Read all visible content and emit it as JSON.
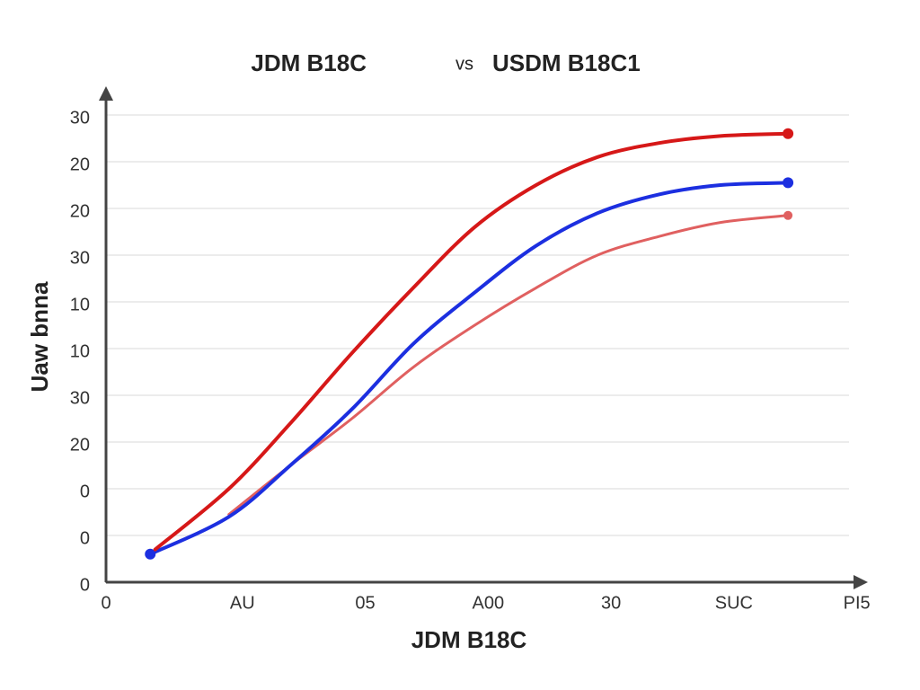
{
  "chart_data": {
    "type": "line",
    "title": [
      "JDM B18C",
      "vs",
      "USDM B18C1"
    ],
    "y_label": "Uaw bnna",
    "x_label": "JDM B18C",
    "xlim": [
      0,
      6.2
    ],
    "ylim": [
      0,
      10.5
    ],
    "xticks": [
      0,
      {
        "value": 1,
        "label": "AU"
      },
      {
        "value": 2,
        "label": "05"
      },
      {
        "value": 3,
        "label": "A00"
      },
      {
        "value": 4,
        "label": "30"
      },
      {
        "value": 5,
        "label": "SUC"
      },
      {
        "value": 6,
        "label": "PI5"
      }
    ],
    "yticks": [
      0,
      {
        "value": 1,
        "label": "0"
      },
      {
        "value": 2,
        "label": "0"
      },
      {
        "value": 3,
        "label": "20"
      },
      {
        "value": 4,
        "label": "30"
      },
      {
        "value": 5,
        "label": "10"
      },
      {
        "value": 6,
        "label": "10"
      },
      {
        "value": 7,
        "label": "30"
      },
      {
        "value": 8,
        "label": "20"
      },
      {
        "value": 9,
        "label": "20"
      },
      {
        "value": 10,
        "label": "30"
      }
    ],
    "grid": true,
    "series": [
      {
        "color": "#e06060",
        "width": 3,
        "x": [
          1,
          1.5,
          2,
          2.5,
          3,
          3.5,
          4,
          4.5,
          5,
          5.55
        ],
        "values": [
          1.45,
          2.5,
          3.5,
          4.6,
          5.5,
          6.3,
          7.0,
          7.4,
          7.7,
          7.85
        ],
        "end_markers": "last"
      },
      {
        "color": "#1c2fe0",
        "width": 4,
        "x": [
          0.36,
          1,
          1.5,
          2,
          2.5,
          3,
          3.5,
          4,
          4.5,
          5,
          5.55
        ],
        "values": [
          0.6,
          1.4,
          2.5,
          3.7,
          5.1,
          6.2,
          7.2,
          7.9,
          8.3,
          8.5,
          8.55
        ],
        "end_markers": "both"
      },
      {
        "color": "#d61818",
        "width": 4,
        "x": [
          0.4,
          1,
          1.5,
          2,
          2.5,
          3,
          3.5,
          4,
          4.5,
          5,
          5.55
        ],
        "values": [
          0.7,
          2.0,
          3.4,
          4.9,
          6.3,
          7.6,
          8.5,
          9.1,
          9.4,
          9.55,
          9.6
        ],
        "end_markers": "last"
      }
    ]
  }
}
